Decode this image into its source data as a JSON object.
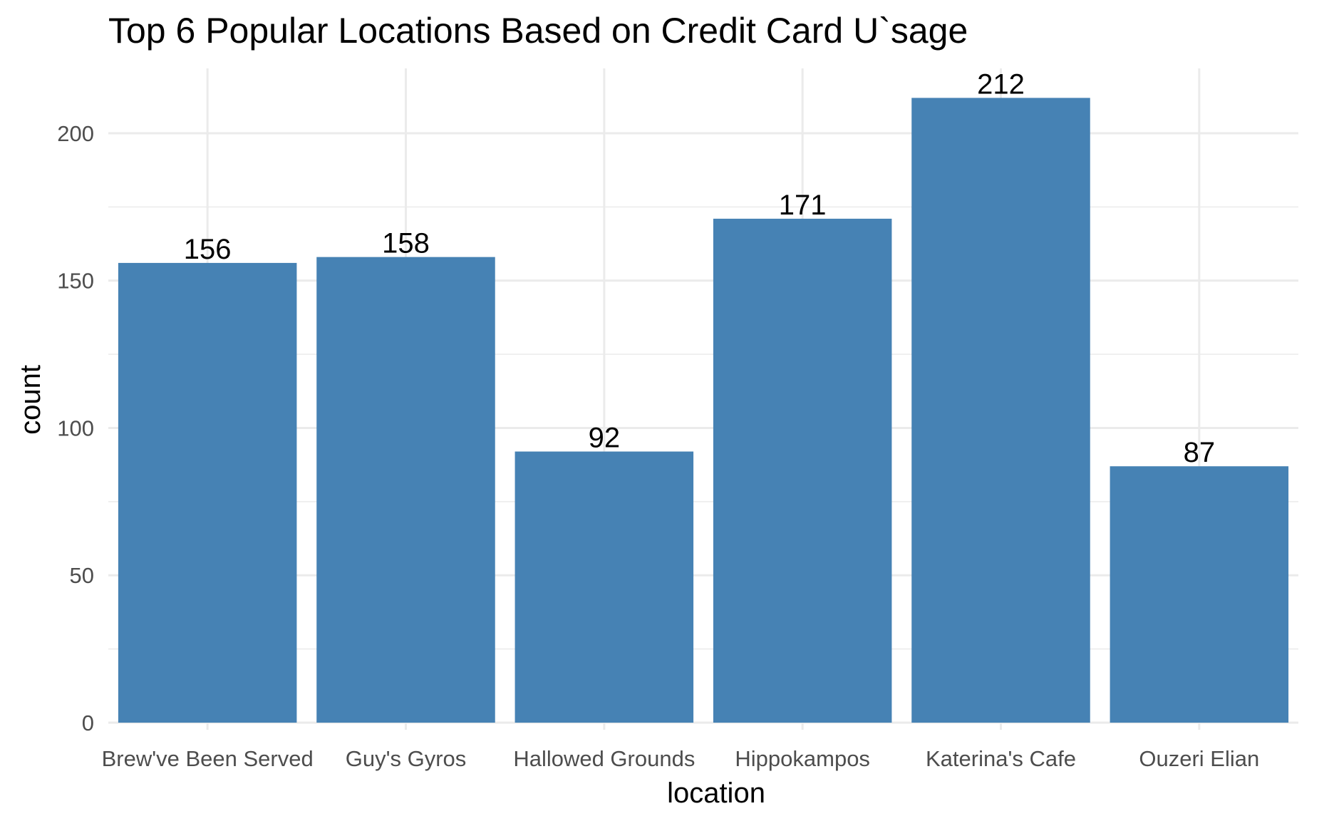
{
  "chart_data": {
    "type": "bar",
    "title": "Top 6 Popular Locations Based on Credit Card U`sage",
    "xlabel": "location",
    "ylabel": "count",
    "categories": [
      "Brew've Been Served",
      "Guy's Gyros",
      "Hallowed Grounds",
      "Hippokampos",
      "Katerina's Cafe",
      "Ouzeri Elian"
    ],
    "values": [
      156,
      158,
      92,
      171,
      212,
      87
    ],
    "ylim": [
      0,
      222
    ],
    "yticks": [
      0,
      50,
      100,
      150,
      200
    ],
    "grid": true,
    "bar_color": "#4682b4",
    "data_labels": true
  }
}
